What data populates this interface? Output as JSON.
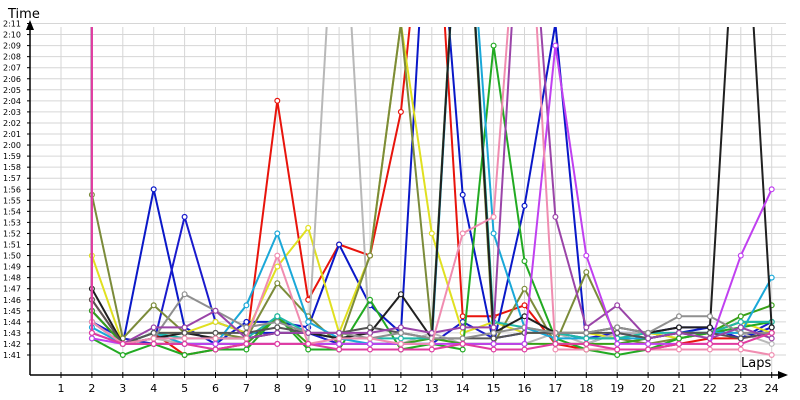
{
  "chart_data": {
    "type": "line",
    "ylabel": "Time",
    "xlabel": "Laps",
    "x": [
      1,
      2,
      3,
      4,
      5,
      6,
      7,
      8,
      9,
      10,
      11,
      12,
      13,
      14,
      15,
      16,
      17,
      18,
      19,
      20,
      21,
      22,
      23,
      24
    ],
    "y_ticks": [
      "1:41",
      "1:42",
      "1:43",
      "1:44",
      "1:45",
      "1:46",
      "1:47",
      "1:48",
      "1:49",
      "1:50",
      "1:51",
      "1:52",
      "1:53",
      "1:54",
      "1:55",
      "1:56",
      "1:57",
      "1:58",
      "1:59",
      "2:00",
      "2:01",
      "2:02",
      "2:03",
      "2:04",
      "2:05",
      "2:06",
      "2:07",
      "2:08",
      "2:09",
      "2:10",
      "2:11"
    ],
    "y_units": "seconds",
    "ylim": [
      100,
      132
    ],
    "grid": true,
    "series": [
      {
        "color": "#e8140c",
        "values": [
          null,
          106,
          102,
          103,
          101,
          101.5,
          102,
          124,
          106,
          111,
          110,
          123,
          150,
          104.5,
          104.5,
          105.5,
          102,
          101.5,
          101.5,
          101.5,
          102,
          102.5,
          102.5,
          103
        ]
      },
      {
        "color": "#0a18c8",
        "values": [
          null,
          105,
          102,
          116,
          103.5,
          102,
          104,
          104,
          103.5,
          111,
          105.5,
          103,
          150,
          115.5,
          102,
          114.5,
          131,
          102,
          103,
          102.5,
          103,
          103.5,
          102.5,
          103.5
        ]
      },
      {
        "color": "#1a1acc",
        "values": [
          null,
          104,
          102.5,
          102,
          113.5,
          104,
          103,
          103,
          103,
          102,
          102,
          102,
          102,
          104,
          102.5,
          103,
          103,
          102.5,
          103,
          103,
          103.5,
          103.5,
          102.5,
          104
        ]
      },
      {
        "color": "#e0e020",
        "values": [
          null,
          110,
          102,
          103,
          103,
          104,
          103,
          109,
          112.5,
          103,
          110,
          131,
          112,
          103,
          104,
          103,
          103,
          103,
          102.5,
          103,
          102.5,
          103,
          104,
          103
        ]
      },
      {
        "color": "#b8b8b8",
        "values": [
          null,
          104,
          102,
          102.5,
          102,
          102,
          102,
          102,
          102,
          150,
          102,
          102,
          103,
          102,
          102,
          102,
          103,
          102,
          103,
          103,
          103,
          103,
          103,
          102
        ]
      },
      {
        "color": "#7b8b3a",
        "values": [
          null,
          115.5,
          102.5,
          105.5,
          103,
          103,
          102.5,
          107.5,
          104.5,
          102,
          110,
          131,
          103,
          150,
          102,
          107,
          102,
          108.5,
          102.5,
          102,
          102.5,
          103,
          104,
          104
        ]
      },
      {
        "color": "#22aa22",
        "values": [
          null,
          102.5,
          101,
          102,
          101,
          101.5,
          101.5,
          104.5,
          101.5,
          101.5,
          106,
          101.5,
          102,
          101.5,
          129,
          109.5,
          102.5,
          101.5,
          101,
          101.5,
          102.5,
          103,
          103.5,
          104
        ]
      },
      {
        "color": "#38a018",
        "values": [
          null,
          105,
          102,
          102,
          102,
          102,
          102,
          104.5,
          102,
          102,
          102,
          102,
          102.5,
          102,
          102,
          102,
          102,
          102,
          102,
          102.5,
          103,
          103,
          104.5,
          105.5
        ]
      },
      {
        "color": "#1aa8d8",
        "values": [
          null,
          103.5,
          102,
          103,
          102,
          102,
          105.5,
          112,
          104,
          102.5,
          102,
          102,
          102,
          150,
          112,
          103.5,
          102.5,
          102.5,
          102.5,
          102.5,
          103,
          103,
          103,
          108
        ]
      },
      {
        "color": "#20b8a8",
        "values": [
          null,
          104,
          102,
          103,
          102.5,
          102.5,
          102.5,
          104.5,
          103,
          102.5,
          102.5,
          102.5,
          102.5,
          150,
          104,
          103.5,
          103,
          102.5,
          102.5,
          103,
          103,
          103,
          104,
          104
        ]
      },
      {
        "color": "#202020",
        "values": [
          null,
          107,
          102,
          102.5,
          103,
          102.5,
          102.5,
          103,
          103,
          102.5,
          103,
          106.5,
          102.5,
          150,
          103,
          104.5,
          103,
          103,
          103.5,
          103,
          103.5,
          103.5,
          150,
          103.5
        ]
      },
      {
        "color": "#555555",
        "values": [
          null,
          106,
          102,
          103,
          103,
          103,
          103,
          103.5,
          103,
          103,
          103.5,
          103,
          102.5,
          102.5,
          102.5,
          103,
          103,
          103,
          103,
          102.5,
          103,
          103,
          102.5,
          103
        ]
      },
      {
        "color": "#8f8f8f",
        "values": [
          null,
          104,
          102,
          102.5,
          106.5,
          105,
          103.5,
          104,
          103,
          103,
          102.5,
          103,
          102.5,
          102.5,
          103,
          103.5,
          103,
          103,
          103.5,
          103,
          104.5,
          104.5,
          103,
          103
        ]
      },
      {
        "color": "#9a44a8",
        "values": [
          null,
          103,
          102,
          103.5,
          103.5,
          105,
          102.5,
          103,
          103,
          103,
          103,
          103.5,
          103,
          103.5,
          103.5,
          150,
          113.5,
          103.5,
          105.5,
          102.5,
          103,
          102.5,
          103.5,
          102.5
        ]
      },
      {
        "color": "#c040f0",
        "values": [
          null,
          102.5,
          102,
          102,
          102,
          102,
          102,
          102,
          102,
          102,
          102,
          102,
          102,
          102,
          102,
          102,
          129,
          110,
          102,
          102,
          102,
          102,
          110,
          116
        ]
      },
      {
        "color": "#f08cb0",
        "values": [
          null,
          104,
          102,
          102.5,
          102.5,
          102.5,
          102.5,
          110,
          102,
          102.5,
          102.5,
          102,
          102,
          112,
          113.5,
          150,
          101.5,
          101.5,
          101.5,
          101.5,
          101.5,
          101.5,
          101.5,
          101
        ]
      },
      {
        "color": "#e03ca0",
        "values": [
          null,
          103,
          102,
          102,
          102,
          101.5,
          102,
          102,
          102,
          101.5,
          101.5,
          101.5,
          101.5,
          102,
          101.5,
          101.5,
          102,
          102,
          101.5,
          101.5,
          102,
          102,
          102,
          103
        ]
      }
    ]
  }
}
